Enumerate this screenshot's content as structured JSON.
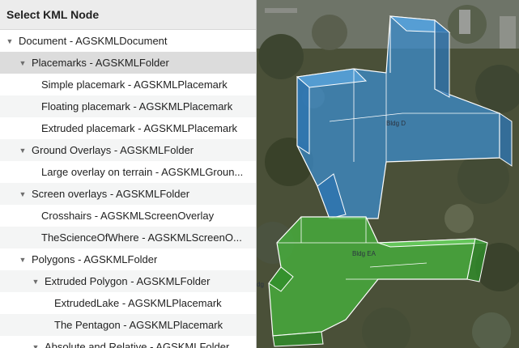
{
  "sidebar": {
    "title": "Select KML Node",
    "rows": [
      {
        "label": "Document - AGSKMLDocument",
        "expanded": true
      },
      {
        "label": "Placemarks - AGSKMLFolder",
        "expanded": true,
        "selected": true
      },
      {
        "label": "Simple placemark - AGSKMLPlacemark"
      },
      {
        "label": "Floating placemark - AGSKMLPlacemark"
      },
      {
        "label": "Extruded placemark - AGSKMLPlacemark"
      },
      {
        "label": "Ground Overlays - AGSKMLFolder",
        "expanded": true
      },
      {
        "label": "Large overlay on terrain - AGSKMLGroun..."
      },
      {
        "label": "Screen overlays - AGSKMLFolder",
        "expanded": true
      },
      {
        "label": "Crosshairs - AGSKMLScreenOverlay"
      },
      {
        "label": "TheScienceOfWhere - AGSKMLScreenO..."
      },
      {
        "label": "Polygons - AGSKMLFolder",
        "expanded": true
      },
      {
        "label": "Extruded Polygon - AGSKMLFolder",
        "expanded": true
      },
      {
        "label": "ExtrudedLake - AGSKMLPlacemark"
      },
      {
        "label": "The Pentagon - AGSKMLPlacemark"
      },
      {
        "label": "Absolute and Relative - AGSKMLFolder",
        "expanded": true
      }
    ]
  },
  "map": {
    "labels": {
      "bldg_d": "Bldg D",
      "bldg_ea": "Bldg EA",
      "bldg_edge": "dg"
    }
  },
  "colors": {
    "selection": "#dcdcdc",
    "header_bg": "#ececec",
    "blue_extrusion": "#3c8ccc",
    "green_extrusion": "#46b43c"
  },
  "icons": {
    "expanded": "disclosure-triangle-down-icon"
  }
}
